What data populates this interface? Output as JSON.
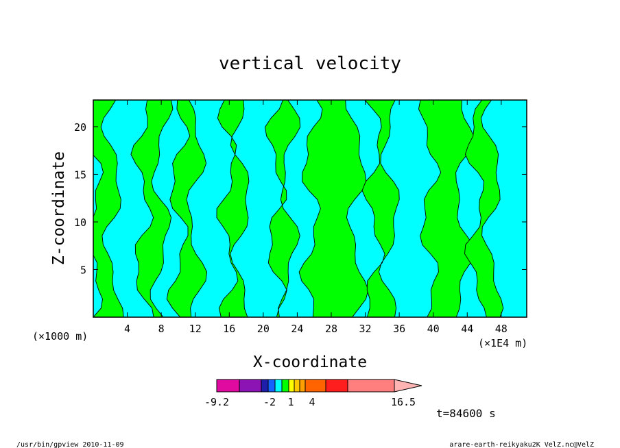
{
  "chart_data": {
    "type": "heatmap",
    "title": "vertical velocity",
    "xlabel": "X-coordinate",
    "ylabel": "Z-coordinate",
    "x_unit_left": "(×1000 m)",
    "x_unit_right": "(×1E4 m)",
    "xlim": [
      0,
      51
    ],
    "ylim": [
      0,
      22.8
    ],
    "x_ticks": [
      "4",
      "8",
      "12",
      "16",
      "20",
      "24",
      "28",
      "32",
      "36",
      "40",
      "44",
      "48"
    ],
    "y_ticks": [
      "5",
      "10",
      "15",
      "20"
    ],
    "regions": [
      {
        "level": "1 to 2.5",
        "color": "#00ff00",
        "x_bands": [
          [
            0,
            2.3
          ],
          [
            5.8,
            8
          ],
          [
            10,
            12
          ],
          [
            15.8,
            17.5
          ],
          [
            21.5,
            23
          ],
          [
            25.6,
            31
          ],
          [
            33,
            35
          ],
          [
            39.5,
            43.5
          ],
          [
            45,
            47
          ]
        ]
      },
      {
        "level": "-2 to 1",
        "color": "#00ffff",
        "x_bands": [
          [
            2.3,
            5.8
          ],
          [
            8,
            10
          ],
          [
            12,
            15.8
          ],
          [
            17.5,
            21.5
          ],
          [
            23,
            25.6
          ],
          [
            31,
            33
          ],
          [
            35,
            39.5
          ],
          [
            43.5,
            45
          ],
          [
            47,
            51
          ]
        ]
      }
    ],
    "colorbar": {
      "tick_labels": [
        "-9.2",
        "-2",
        "1",
        "4",
        "16.5"
      ],
      "colors": [
        "#e10aa0",
        "#8c14b4",
        "#1e1eaa",
        "#1464ff",
        "#00ffff",
        "#00ff00",
        "#ffff00",
        "#ffc800",
        "#ffa000",
        "#ff6400",
        "#ff1e1e",
        "#ff7f7f",
        "#ffb4b4"
      ]
    },
    "time_label": "t=84600 s"
  },
  "footer": {
    "left": "/usr/bin/gpview   2010-11-09",
    "right": "arare-earth-reikyaku2K_VelZ.nc@VelZ"
  }
}
